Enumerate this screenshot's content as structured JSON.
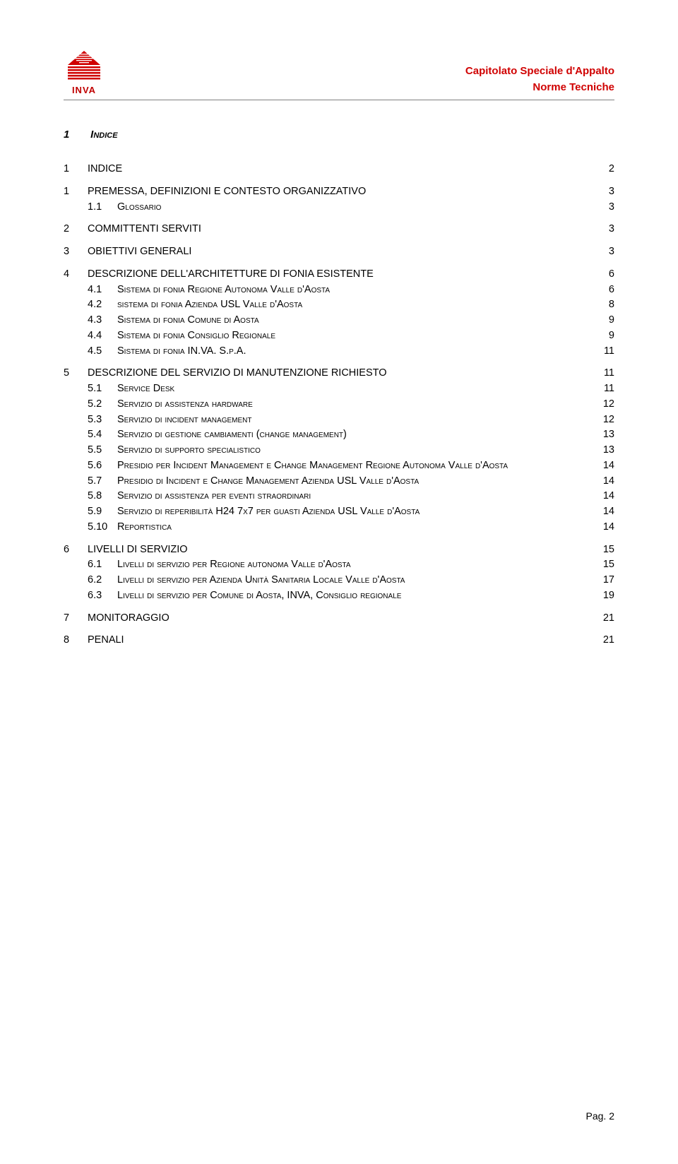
{
  "header": {
    "logo_text": "INVA",
    "title_line1": "Capitolato Speciale d'Appalto",
    "title_line2": "Norme Tecniche",
    "logo_color": "#d00000",
    "title_color": "#d00000"
  },
  "section": {
    "num": "1",
    "title": "Indice"
  },
  "toc": [
    {
      "num": "1",
      "label": "INDICE",
      "page": "2",
      "children": []
    },
    {
      "num": "1",
      "label": "PREMESSA, DEFINIZIONI E CONTESTO ORGANIZZATIVO",
      "page": "3",
      "children": [
        {
          "num": "1.1",
          "label": "Glossario",
          "page": "3",
          "sc": true
        }
      ]
    },
    {
      "num": "2",
      "label": "COMMITTENTI SERVITI",
      "page": "3",
      "children": []
    },
    {
      "num": "3",
      "label": "OBIETTIVI GENERALI",
      "page": "3",
      "children": []
    },
    {
      "num": "4",
      "label": "DESCRIZIONE DELL'ARCHITETTURE DI FONIA ESISTENTE",
      "page": "6",
      "children": [
        {
          "num": "4.1",
          "label": "Sistema di fonia Regione Autonoma Valle d'Aosta",
          "page": "6",
          "sc": true
        },
        {
          "num": "4.2",
          "label": "sistema di fonia Azienda USL Valle d'Aosta",
          "page": "8",
          "sc": true
        },
        {
          "num": "4.3",
          "label": "Sistema di fonia Comune di Aosta",
          "page": "9",
          "sc": true
        },
        {
          "num": "4.4",
          "label": "Sistema di fonia Consiglio Regionale",
          "page": "9",
          "sc": true
        },
        {
          "num": "4.5",
          "label": "Sistema di fonia IN.VA. S.p.A.",
          "page": "11",
          "sc": true
        }
      ]
    },
    {
      "num": "5",
      "label": "DESCRIZIONE DEL SERVIZIO DI MANUTENZIONE RICHIESTO",
      "page": "11",
      "children": [
        {
          "num": "5.1",
          "label": "Service Desk",
          "page": "11",
          "sc": true
        },
        {
          "num": "5.2",
          "label": "Servizio di assistenza hardware",
          "page": "12",
          "sc": true
        },
        {
          "num": "5.3",
          "label": "Servizio di incident management",
          "page": "12",
          "sc": true
        },
        {
          "num": "5.4",
          "label": "Servizio di gestione cambiamenti (change management)",
          "page": "13",
          "sc": true
        },
        {
          "num": "5.5",
          "label": "Servizio di supporto specialistico",
          "page": "13",
          "sc": true
        },
        {
          "num": "5.6",
          "label": "Presidio per Incident Management e Change Management Regione Autonoma Valle d'Aosta",
          "page": "14",
          "sc": true
        },
        {
          "num": "5.7",
          "label": "Presidio di Incident e Change Management Azienda USL Valle d'Aosta",
          "page": "14",
          "sc": true
        },
        {
          "num": "5.8",
          "label": "Servizio di assistenza per eventi straordinari",
          "page": "14",
          "sc": true
        },
        {
          "num": "5.9",
          "label": "Servizio di reperibilità H24 7x7 per guasti Azienda USL Valle d'Aosta",
          "page": "14",
          "sc": true
        },
        {
          "num": "5.10",
          "label": "Reportistica",
          "page": "14",
          "sc": true
        }
      ]
    },
    {
      "num": "6",
      "label": "LIVELLI DI SERVIZIO",
      "page": "15",
      "children": [
        {
          "num": "6.1",
          "label": "Livelli di servizio per Regione autonoma Valle d'Aosta",
          "page": "15",
          "sc": true
        },
        {
          "num": "6.2",
          "label": "Livelli di servizio per Azienda Unità Sanitaria Locale Valle d'Aosta",
          "page": "17",
          "sc": true
        },
        {
          "num": "6.3",
          "label": "Livelli di servizio per Comune di Aosta, INVA, Consiglio regionale",
          "page": "19",
          "sc": true
        }
      ]
    },
    {
      "num": "7",
      "label": "MONITORAGGIO",
      "page": "21",
      "children": []
    },
    {
      "num": "8",
      "label": "PENALI",
      "page": "21",
      "children": []
    }
  ],
  "footer": {
    "text": "Pag. 2"
  }
}
